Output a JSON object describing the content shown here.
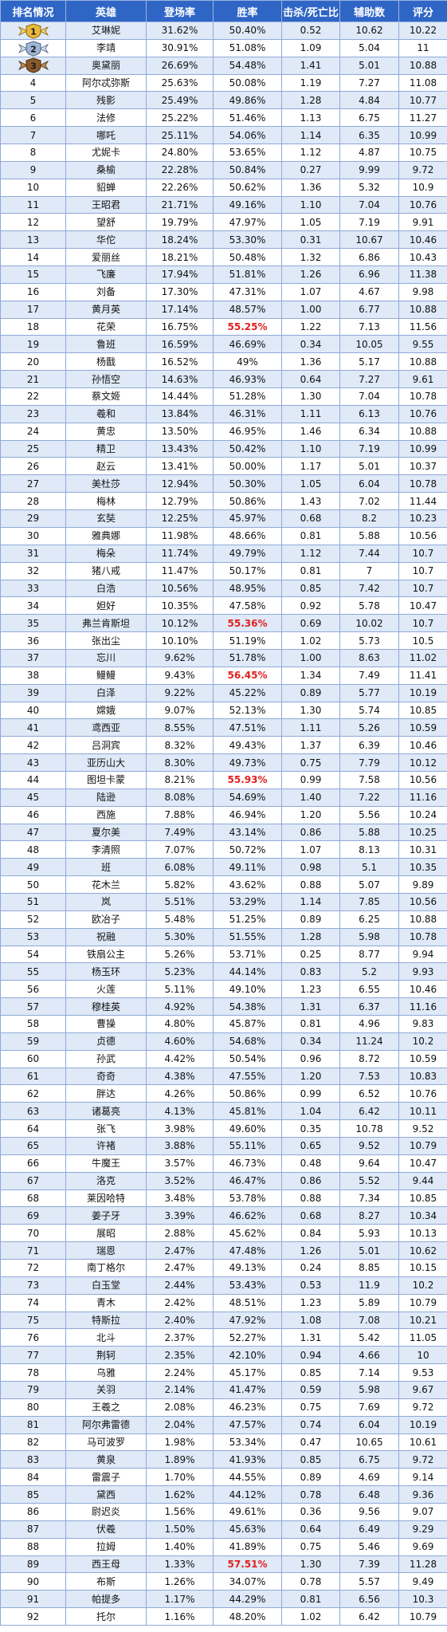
{
  "colors": {
    "header_bg": "#2f66c6",
    "row_alt": "#dfe9f7",
    "highlight": "#e02020"
  },
  "headers": [
    "排名情况",
    "英雄",
    "登场率",
    "胜率",
    "击杀/死亡比",
    "辅助数",
    "评分"
  ],
  "medals": [
    "gold-medal-1-icon",
    "silver-medal-2-icon",
    "bronze-medal-3-icon"
  ],
  "rows": [
    {
      "rank": "1",
      "hero": "艾琳妮",
      "pick": "31.62%",
      "win": "50.40%",
      "kd": "0.52",
      "assist": "10.62",
      "score": "10.22",
      "hl": false
    },
    {
      "rank": "2",
      "hero": "李靖",
      "pick": "30.91%",
      "win": "51.08%",
      "kd": "1.09",
      "assist": "5.04",
      "score": "11",
      "hl": false
    },
    {
      "rank": "3",
      "hero": "奥黛丽",
      "pick": "26.69%",
      "win": "54.48%",
      "kd": "1.41",
      "assist": "5.01",
      "score": "10.88",
      "hl": false
    },
    {
      "rank": "4",
      "hero": "阿尔忒弥斯",
      "pick": "25.63%",
      "win": "50.08%",
      "kd": "1.19",
      "assist": "7.27",
      "score": "11.08",
      "hl": false
    },
    {
      "rank": "5",
      "hero": "残影",
      "pick": "25.49%",
      "win": "49.86%",
      "kd": "1.28",
      "assist": "4.84",
      "score": "10.77",
      "hl": false
    },
    {
      "rank": "6",
      "hero": "法修",
      "pick": "25.22%",
      "win": "51.46%",
      "kd": "1.13",
      "assist": "6.75",
      "score": "11.27",
      "hl": false
    },
    {
      "rank": "7",
      "hero": "哪吒",
      "pick": "25.11%",
      "win": "54.06%",
      "kd": "1.14",
      "assist": "6.35",
      "score": "10.99",
      "hl": false
    },
    {
      "rank": "8",
      "hero": "尤妮卡",
      "pick": "24.80%",
      "win": "53.65%",
      "kd": "1.12",
      "assist": "4.87",
      "score": "10.75",
      "hl": false
    },
    {
      "rank": "9",
      "hero": "桑榆",
      "pick": "22.28%",
      "win": "50.84%",
      "kd": "0.27",
      "assist": "9.99",
      "score": "9.72",
      "hl": false
    },
    {
      "rank": "10",
      "hero": "貂蝉",
      "pick": "22.26%",
      "win": "50.62%",
      "kd": "1.36",
      "assist": "5.32",
      "score": "10.9",
      "hl": false
    },
    {
      "rank": "11",
      "hero": "王昭君",
      "pick": "21.71%",
      "win": "49.16%",
      "kd": "1.10",
      "assist": "7.04",
      "score": "10.76",
      "hl": false
    },
    {
      "rank": "12",
      "hero": "望舒",
      "pick": "19.79%",
      "win": "47.97%",
      "kd": "1.05",
      "assist": "7.19",
      "score": "9.91",
      "hl": false
    },
    {
      "rank": "13",
      "hero": "华佗",
      "pick": "18.24%",
      "win": "53.30%",
      "kd": "0.31",
      "assist": "10.67",
      "score": "10.46",
      "hl": false
    },
    {
      "rank": "14",
      "hero": "爱丽丝",
      "pick": "18.21%",
      "win": "50.48%",
      "kd": "1.32",
      "assist": "6.86",
      "score": "10.43",
      "hl": false
    },
    {
      "rank": "15",
      "hero": "飞廉",
      "pick": "17.94%",
      "win": "51.81%",
      "kd": "1.26",
      "assist": "6.96",
      "score": "11.38",
      "hl": false
    },
    {
      "rank": "16",
      "hero": "刘备",
      "pick": "17.30%",
      "win": "47.31%",
      "kd": "1.07",
      "assist": "4.67",
      "score": "9.98",
      "hl": false
    },
    {
      "rank": "17",
      "hero": "黄月英",
      "pick": "17.14%",
      "win": "48.57%",
      "kd": "1.00",
      "assist": "6.77",
      "score": "10.88",
      "hl": false
    },
    {
      "rank": "18",
      "hero": "花荣",
      "pick": "16.75%",
      "win": "55.25%",
      "kd": "1.22",
      "assist": "7.13",
      "score": "11.56",
      "hl": true
    },
    {
      "rank": "19",
      "hero": "鲁班",
      "pick": "16.59%",
      "win": "46.69%",
      "kd": "0.34",
      "assist": "10.05",
      "score": "9.55",
      "hl": false
    },
    {
      "rank": "20",
      "hero": "杨戬",
      "pick": "16.52%",
      "win": "49%",
      "kd": "1.36",
      "assist": "5.17",
      "score": "10.88",
      "hl": false
    },
    {
      "rank": "21",
      "hero": "孙悟空",
      "pick": "14.63%",
      "win": "46.93%",
      "kd": "0.64",
      "assist": "7.27",
      "score": "9.61",
      "hl": false
    },
    {
      "rank": "22",
      "hero": "蔡文姬",
      "pick": "14.44%",
      "win": "51.28%",
      "kd": "1.30",
      "assist": "7.04",
      "score": "10.78",
      "hl": false
    },
    {
      "rank": "23",
      "hero": "羲和",
      "pick": "13.84%",
      "win": "46.31%",
      "kd": "1.11",
      "assist": "6.13",
      "score": "10.76",
      "hl": false
    },
    {
      "rank": "24",
      "hero": "黄忠",
      "pick": "13.50%",
      "win": "46.95%",
      "kd": "1.46",
      "assist": "6.34",
      "score": "10.88",
      "hl": false
    },
    {
      "rank": "25",
      "hero": "精卫",
      "pick": "13.43%",
      "win": "50.42%",
      "kd": "1.10",
      "assist": "7.19",
      "score": "10.99",
      "hl": false
    },
    {
      "rank": "26",
      "hero": "赵云",
      "pick": "13.41%",
      "win": "50.00%",
      "kd": "1.17",
      "assist": "5.01",
      "score": "10.37",
      "hl": false
    },
    {
      "rank": "27",
      "hero": "美杜莎",
      "pick": "12.94%",
      "win": "50.30%",
      "kd": "1.05",
      "assist": "6.04",
      "score": "10.78",
      "hl": false
    },
    {
      "rank": "28",
      "hero": "梅林",
      "pick": "12.79%",
      "win": "50.86%",
      "kd": "1.43",
      "assist": "7.02",
      "score": "11.44",
      "hl": false
    },
    {
      "rank": "29",
      "hero": "玄奘",
      "pick": "12.25%",
      "win": "45.97%",
      "kd": "0.68",
      "assist": "8.2",
      "score": "10.23",
      "hl": false
    },
    {
      "rank": "30",
      "hero": "雅典娜",
      "pick": "11.98%",
      "win": "48.66%",
      "kd": "0.81",
      "assist": "5.88",
      "score": "10.56",
      "hl": false
    },
    {
      "rank": "31",
      "hero": "梅朵",
      "pick": "11.74%",
      "win": "49.79%",
      "kd": "1.12",
      "assist": "7.44",
      "score": "10.7",
      "hl": false
    },
    {
      "rank": "32",
      "hero": "猪八戒",
      "pick": "11.47%",
      "win": "50.17%",
      "kd": "0.81",
      "assist": "7",
      "score": "10.7",
      "hl": false
    },
    {
      "rank": "33",
      "hero": "白浩",
      "pick": "10.56%",
      "win": "48.95%",
      "kd": "0.85",
      "assist": "7.42",
      "score": "10.7",
      "hl": false
    },
    {
      "rank": "34",
      "hero": "妲好",
      "pick": "10.35%",
      "win": "47.58%",
      "kd": "0.92",
      "assist": "5.78",
      "score": "10.47",
      "hl": false
    },
    {
      "rank": "35",
      "hero": "弗兰肯斯坦",
      "pick": "10.12%",
      "win": "55.36%",
      "kd": "0.69",
      "assist": "10.02",
      "score": "10.7",
      "hl": true
    },
    {
      "rank": "36",
      "hero": "张出尘",
      "pick": "10.10%",
      "win": "51.19%",
      "kd": "1.02",
      "assist": "5.73",
      "score": "10.5",
      "hl": false
    },
    {
      "rank": "37",
      "hero": "忘川",
      "pick": "9.62%",
      "win": "51.78%",
      "kd": "1.00",
      "assist": "8.63",
      "score": "11.02",
      "hl": false
    },
    {
      "rank": "38",
      "hero": "鳗鳗",
      "pick": "9.43%",
      "win": "56.45%",
      "kd": "1.34",
      "assist": "7.49",
      "score": "11.41",
      "hl": true
    },
    {
      "rank": "39",
      "hero": "白泽",
      "pick": "9.22%",
      "win": "45.22%",
      "kd": "0.89",
      "assist": "5.77",
      "score": "10.19",
      "hl": false
    },
    {
      "rank": "40",
      "hero": "嫦娥",
      "pick": "9.07%",
      "win": "52.13%",
      "kd": "1.30",
      "assist": "5.74",
      "score": "10.85",
      "hl": false
    },
    {
      "rank": "41",
      "hero": "鸢西亚",
      "pick": "8.55%",
      "win": "47.51%",
      "kd": "1.11",
      "assist": "5.26",
      "score": "10.59",
      "hl": false
    },
    {
      "rank": "42",
      "hero": "吕洞宾",
      "pick": "8.32%",
      "win": "49.43%",
      "kd": "1.37",
      "assist": "6.39",
      "score": "10.46",
      "hl": false
    },
    {
      "rank": "43",
      "hero": "亚历山大",
      "pick": "8.30%",
      "win": "49.73%",
      "kd": "0.75",
      "assist": "7.79",
      "score": "10.12",
      "hl": false
    },
    {
      "rank": "44",
      "hero": "图坦卡蒙",
      "pick": "8.21%",
      "win": "55.93%",
      "kd": "0.99",
      "assist": "7.58",
      "score": "10.56",
      "hl": true
    },
    {
      "rank": "45",
      "hero": "陆逊",
      "pick": "8.08%",
      "win": "54.69%",
      "kd": "1.40",
      "assist": "7.22",
      "score": "11.16",
      "hl": false
    },
    {
      "rank": "46",
      "hero": "西施",
      "pick": "7.88%",
      "win": "46.94%",
      "kd": "1.20",
      "assist": "5.56",
      "score": "10.24",
      "hl": false
    },
    {
      "rank": "47",
      "hero": "夏尔美",
      "pick": "7.49%",
      "win": "43.14%",
      "kd": "0.86",
      "assist": "5.88",
      "score": "10.25",
      "hl": false
    },
    {
      "rank": "48",
      "hero": "李清照",
      "pick": "7.07%",
      "win": "50.72%",
      "kd": "1.07",
      "assist": "8.13",
      "score": "10.31",
      "hl": false
    },
    {
      "rank": "49",
      "hero": "班",
      "pick": "6.08%",
      "win": "49.11%",
      "kd": "0.98",
      "assist": "5.1",
      "score": "10.35",
      "hl": false
    },
    {
      "rank": "50",
      "hero": "花木兰",
      "pick": "5.82%",
      "win": "43.62%",
      "kd": "0.88",
      "assist": "5.07",
      "score": "9.89",
      "hl": false
    },
    {
      "rank": "51",
      "hero": "岚",
      "pick": "5.51%",
      "win": "53.29%",
      "kd": "1.14",
      "assist": "7.85",
      "score": "10.56",
      "hl": false
    },
    {
      "rank": "52",
      "hero": "欧冶子",
      "pick": "5.48%",
      "win": "51.25%",
      "kd": "0.89",
      "assist": "6.25",
      "score": "10.88",
      "hl": false
    },
    {
      "rank": "53",
      "hero": "祝融",
      "pick": "5.30%",
      "win": "51.55%",
      "kd": "1.28",
      "assist": "5.98",
      "score": "10.78",
      "hl": false
    },
    {
      "rank": "54",
      "hero": "铁扇公主",
      "pick": "5.26%",
      "win": "53.71%",
      "kd": "0.25",
      "assist": "8.77",
      "score": "9.94",
      "hl": false
    },
    {
      "rank": "55",
      "hero": "杨玉环",
      "pick": "5.23%",
      "win": "44.14%",
      "kd": "0.83",
      "assist": "5.2",
      "score": "9.93",
      "hl": false
    },
    {
      "rank": "56",
      "hero": "火莲",
      "pick": "5.11%",
      "win": "49.10%",
      "kd": "1.23",
      "assist": "6.55",
      "score": "10.46",
      "hl": false
    },
    {
      "rank": "57",
      "hero": "穆桂英",
      "pick": "4.92%",
      "win": "54.38%",
      "kd": "1.31",
      "assist": "6.37",
      "score": "11.16",
      "hl": false
    },
    {
      "rank": "58",
      "hero": "曹操",
      "pick": "4.80%",
      "win": "45.87%",
      "kd": "0.81",
      "assist": "4.96",
      "score": "9.83",
      "hl": false
    },
    {
      "rank": "59",
      "hero": "贞德",
      "pick": "4.60%",
      "win": "54.68%",
      "kd": "0.34",
      "assist": "11.24",
      "score": "10.2",
      "hl": false
    },
    {
      "rank": "60",
      "hero": "孙武",
      "pick": "4.42%",
      "win": "50.54%",
      "kd": "0.96",
      "assist": "8.72",
      "score": "10.59",
      "hl": false
    },
    {
      "rank": "61",
      "hero": "奇奇",
      "pick": "4.38%",
      "win": "47.55%",
      "kd": "1.20",
      "assist": "7.53",
      "score": "10.83",
      "hl": false
    },
    {
      "rank": "62",
      "hero": "胖达",
      "pick": "4.26%",
      "win": "50.86%",
      "kd": "0.99",
      "assist": "6.52",
      "score": "10.76",
      "hl": false
    },
    {
      "rank": "63",
      "hero": "诸葛亮",
      "pick": "4.13%",
      "win": "45.81%",
      "kd": "1.04",
      "assist": "6.42",
      "score": "10.11",
      "hl": false
    },
    {
      "rank": "64",
      "hero": "张飞",
      "pick": "3.98%",
      "win": "49.60%",
      "kd": "0.35",
      "assist": "10.78",
      "score": "9.52",
      "hl": false
    },
    {
      "rank": "65",
      "hero": "许褚",
      "pick": "3.88%",
      "win": "55.11%",
      "kd": "0.65",
      "assist": "9.52",
      "score": "10.79",
      "hl": false
    },
    {
      "rank": "66",
      "hero": "牛魔王",
      "pick": "3.57%",
      "win": "46.73%",
      "kd": "0.48",
      "assist": "9.64",
      "score": "10.47",
      "hl": false
    },
    {
      "rank": "67",
      "hero": "洛克",
      "pick": "3.52%",
      "win": "46.47%",
      "kd": "0.86",
      "assist": "5.52",
      "score": "9.44",
      "hl": false
    },
    {
      "rank": "68",
      "hero": "莱因哈特",
      "pick": "3.48%",
      "win": "53.78%",
      "kd": "0.88",
      "assist": "7.34",
      "score": "10.85",
      "hl": false
    },
    {
      "rank": "69",
      "hero": "姜子牙",
      "pick": "3.39%",
      "win": "46.62%",
      "kd": "0.68",
      "assist": "8.27",
      "score": "10.34",
      "hl": false
    },
    {
      "rank": "70",
      "hero": "展昭",
      "pick": "2.88%",
      "win": "45.62%",
      "kd": "0.84",
      "assist": "5.93",
      "score": "10.13",
      "hl": false
    },
    {
      "rank": "71",
      "hero": "瑞恩",
      "pick": "2.47%",
      "win": "47.48%",
      "kd": "1.26",
      "assist": "5.01",
      "score": "10.62",
      "hl": false
    },
    {
      "rank": "72",
      "hero": "南丁格尔",
      "pick": "2.47%",
      "win": "49.13%",
      "kd": "0.24",
      "assist": "8.85",
      "score": "10.15",
      "hl": false
    },
    {
      "rank": "73",
      "hero": "白玉堂",
      "pick": "2.44%",
      "win": "53.43%",
      "kd": "0.53",
      "assist": "11.9",
      "score": "10.2",
      "hl": false
    },
    {
      "rank": "74",
      "hero": "青木",
      "pick": "2.42%",
      "win": "48.51%",
      "kd": "1.23",
      "assist": "5.89",
      "score": "10.79",
      "hl": false
    },
    {
      "rank": "75",
      "hero": "特斯拉",
      "pick": "2.40%",
      "win": "47.92%",
      "kd": "1.08",
      "assist": "7.08",
      "score": "10.21",
      "hl": false
    },
    {
      "rank": "76",
      "hero": "北斗",
      "pick": "2.37%",
      "win": "52.27%",
      "kd": "1.31",
      "assist": "5.42",
      "score": "11.05",
      "hl": false
    },
    {
      "rank": "77",
      "hero": "荆轲",
      "pick": "2.35%",
      "win": "42.10%",
      "kd": "0.94",
      "assist": "4.66",
      "score": "10",
      "hl": false
    },
    {
      "rank": "78",
      "hero": "乌雅",
      "pick": "2.24%",
      "win": "45.17%",
      "kd": "0.85",
      "assist": "7.14",
      "score": "9.53",
      "hl": false
    },
    {
      "rank": "79",
      "hero": "关羽",
      "pick": "2.14%",
      "win": "41.47%",
      "kd": "0.59",
      "assist": "5.98",
      "score": "9.67",
      "hl": false
    },
    {
      "rank": "80",
      "hero": "王羲之",
      "pick": "2.08%",
      "win": "46.23%",
      "kd": "0.75",
      "assist": "7.69",
      "score": "9.72",
      "hl": false
    },
    {
      "rank": "81",
      "hero": "阿尔弗雷德",
      "pick": "2.04%",
      "win": "47.57%",
      "kd": "0.74",
      "assist": "6.04",
      "score": "10.19",
      "hl": false
    },
    {
      "rank": "82",
      "hero": "马可波罗",
      "pick": "1.98%",
      "win": "53.34%",
      "kd": "0.47",
      "assist": "10.65",
      "score": "10.61",
      "hl": false
    },
    {
      "rank": "83",
      "hero": "黄泉",
      "pick": "1.89%",
      "win": "41.93%",
      "kd": "0.85",
      "assist": "6.75",
      "score": "9.72",
      "hl": false
    },
    {
      "rank": "84",
      "hero": "雷震子",
      "pick": "1.70%",
      "win": "44.55%",
      "kd": "0.89",
      "assist": "4.69",
      "score": "9.14",
      "hl": false
    },
    {
      "rank": "85",
      "hero": "黛西",
      "pick": "1.62%",
      "win": "44.12%",
      "kd": "0.78",
      "assist": "6.48",
      "score": "9.36",
      "hl": false
    },
    {
      "rank": "86",
      "hero": "尉迟炎",
      "pick": "1.56%",
      "win": "49.61%",
      "kd": "0.36",
      "assist": "9.56",
      "score": "9.07",
      "hl": false
    },
    {
      "rank": "87",
      "hero": "伏羲",
      "pick": "1.50%",
      "win": "45.63%",
      "kd": "0.64",
      "assist": "6.49",
      "score": "9.29",
      "hl": false
    },
    {
      "rank": "88",
      "hero": "拉姆",
      "pick": "1.40%",
      "win": "41.89%",
      "kd": "0.75",
      "assist": "5.46",
      "score": "9.69",
      "hl": false
    },
    {
      "rank": "89",
      "hero": "西王母",
      "pick": "1.33%",
      "win": "57.51%",
      "kd": "1.30",
      "assist": "7.39",
      "score": "11.28",
      "hl": true
    },
    {
      "rank": "90",
      "hero": "布斯",
      "pick": "1.26%",
      "win": "34.07%",
      "kd": "0.78",
      "assist": "5.57",
      "score": "9.49",
      "hl": false
    },
    {
      "rank": "91",
      "hero": "帕提多",
      "pick": "1.17%",
      "win": "44.29%",
      "kd": "0.81",
      "assist": "6.56",
      "score": "10.3",
      "hl": false
    },
    {
      "rank": "92",
      "hero": "托尔",
      "pick": "1.16%",
      "win": "48.20%",
      "kd": "1.02",
      "assist": "6.42",
      "score": "10.79",
      "hl": false
    }
  ]
}
